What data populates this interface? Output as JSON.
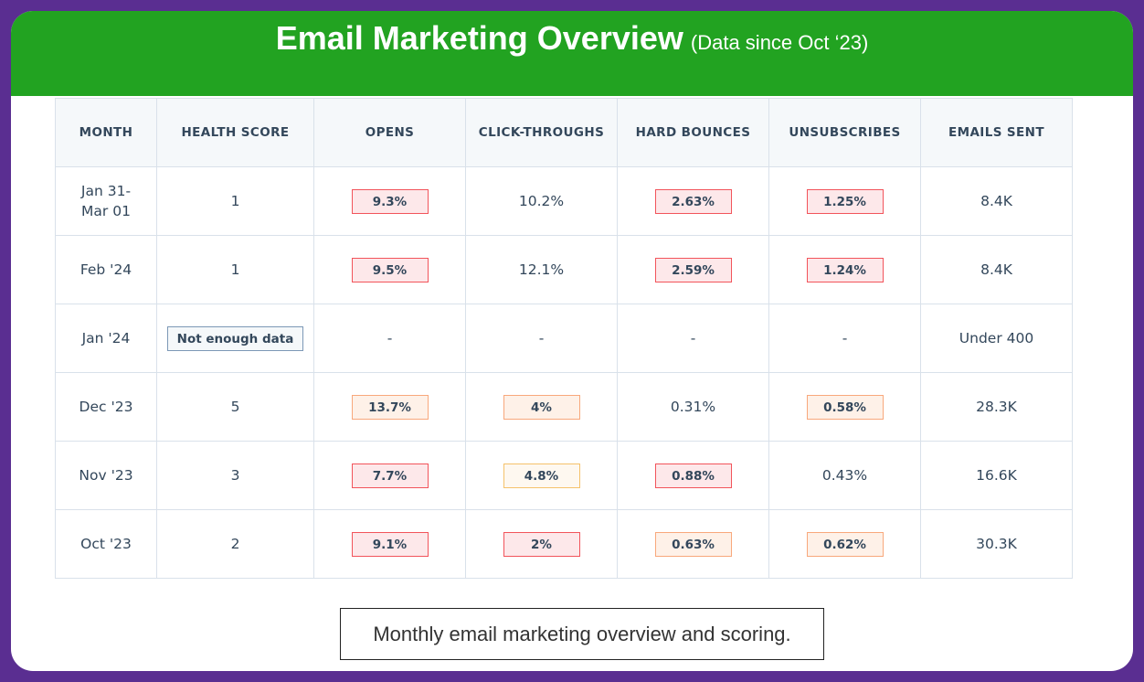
{
  "title": "Email Marketing Overview",
  "subtitle": "(Data since Oct ‘23)",
  "colors": {
    "frame": "#5a2e91",
    "banner": "#22a321",
    "chip_red": "#f2545b",
    "chip_orange": "#f8a87c",
    "chip_yellow": "#f5c26b"
  },
  "table": {
    "headers": [
      "MONTH",
      "HEALTH SCORE",
      "OPENS",
      "CLICK-THROUGHS",
      "HARD BOUNCES",
      "UNSUBSCRIBES",
      "EMAILS SENT"
    ],
    "rows": [
      [
        {
          "text": "Jan 31-\nMar 01"
        },
        {
          "text": "1"
        },
        {
          "text": "9.3%",
          "style": "red"
        },
        {
          "text": "10.2%"
        },
        {
          "text": "2.63%",
          "style": "red"
        },
        {
          "text": "1.25%",
          "style": "red"
        },
        {
          "text": "8.4K"
        }
      ],
      [
        {
          "text": "Feb '24"
        },
        {
          "text": "1"
        },
        {
          "text": "9.5%",
          "style": "red"
        },
        {
          "text": "12.1%"
        },
        {
          "text": "2.59%",
          "style": "red"
        },
        {
          "text": "1.24%",
          "style": "red"
        },
        {
          "text": "8.4K"
        }
      ],
      [
        {
          "text": "Jan '24"
        },
        {
          "text": "Not enough data",
          "style": "gray"
        },
        {
          "text": "-"
        },
        {
          "text": "-"
        },
        {
          "text": "-"
        },
        {
          "text": "-"
        },
        {
          "text": "Under 400"
        }
      ],
      [
        {
          "text": "Dec '23"
        },
        {
          "text": "5"
        },
        {
          "text": "13.7%",
          "style": "orange"
        },
        {
          "text": "4%",
          "style": "orange"
        },
        {
          "text": "0.31%"
        },
        {
          "text": "0.58%",
          "style": "orange"
        },
        {
          "text": "28.3K"
        }
      ],
      [
        {
          "text": "Nov '23"
        },
        {
          "text": "3"
        },
        {
          "text": "7.7%",
          "style": "red"
        },
        {
          "text": "4.8%",
          "style": "yellow"
        },
        {
          "text": "0.88%",
          "style": "red"
        },
        {
          "text": "0.43%"
        },
        {
          "text": "16.6K"
        }
      ],
      [
        {
          "text": "Oct '23"
        },
        {
          "text": "2"
        },
        {
          "text": "9.1%",
          "style": "red"
        },
        {
          "text": "2%",
          "style": "red"
        },
        {
          "text": "0.63%",
          "style": "orange"
        },
        {
          "text": "0.62%",
          "style": "orange"
        },
        {
          "text": "30.3K"
        }
      ]
    ]
  },
  "caption": "Monthly email marketing overview and scoring."
}
